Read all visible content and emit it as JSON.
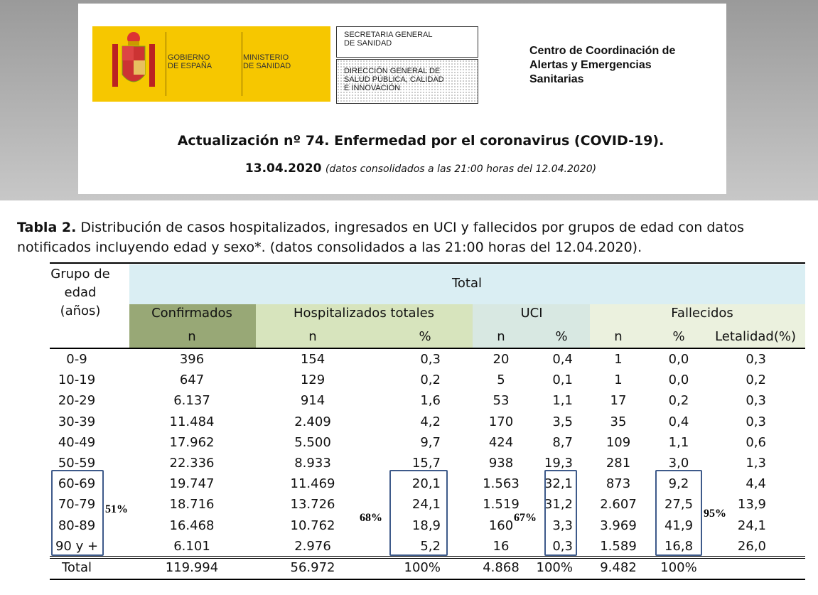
{
  "header": {
    "gobierno": [
      "GOBIERNO",
      "DE ESPAÑA"
    ],
    "ministerio": [
      "MINISTERIO",
      "DE SANIDAD"
    ],
    "box1": [
      "SECRETARIA GENERAL",
      "DE SANIDAD"
    ],
    "box2": [
      "DIRECCIÓN GENERAL DE",
      "SALUD PÚBLICA, CALIDAD",
      "E INNOVACIÓN"
    ],
    "centro": [
      "Centro de Coordinación de",
      "Alertas y Emergencias",
      "Sanitarias"
    ],
    "title": "Actualización nº 74. Enfermedad por el coronavirus (COVID-19).",
    "date": "13.04.2020",
    "date_note": "(datos consolidados a las 21:00 horas del 12.04.2020)"
  },
  "caption": {
    "label": "Tabla 2.",
    "text": "Distribución de casos hospitalizados, ingresados en UCI y fallecidos por grupos de edad con datos notificados incluyendo edad y sexo*. (datos consolidados a las 21:00 horas del 12.04.2020)."
  },
  "table": {
    "age_header": [
      "Grupo de",
      "edad",
      "(años)"
    ],
    "total_header": "Total",
    "groups": [
      "Confirmados",
      "Hospitalizados totales",
      "UCI",
      "Fallecidos"
    ],
    "subheaders": [
      "n",
      "n",
      "%",
      "n",
      "%",
      "n",
      "%",
      "Letalidad(%)"
    ],
    "rows": [
      [
        "0-9",
        "396",
        "154",
        "0,3",
        "20",
        "0,4",
        "1",
        "0,0",
        "0,3"
      ],
      [
        "10-19",
        "647",
        "129",
        "0,2",
        "5",
        "0,1",
        "1",
        "0,0",
        "0,2"
      ],
      [
        "20-29",
        "6.137",
        "914",
        "1,6",
        "53",
        "1,1",
        "17",
        "0,2",
        "0,3"
      ],
      [
        "30-39",
        "11.484",
        "2.409",
        "4,2",
        "170",
        "3,5",
        "35",
        "0,4",
        "0,3"
      ],
      [
        "40-49",
        "17.962",
        "5.500",
        "9,7",
        "424",
        "8,7",
        "109",
        "1,1",
        "0,6"
      ],
      [
        "50-59",
        "22.336",
        "8.933",
        "15,7",
        "938",
        "19,3",
        "281",
        "3,0",
        "1,3"
      ],
      [
        "60-69",
        "19.747",
        "11.469",
        "20,1",
        "1.563",
        "32,1",
        "873",
        "9,2",
        "4,4"
      ],
      [
        "70-79",
        "18.716",
        "13.726",
        "24,1",
        "1.519",
        "31,2",
        "2.607",
        "27,5",
        "13,9"
      ],
      [
        "80-89",
        "16.468",
        "10.762",
        "18,9",
        "160",
        "3,3",
        "3.969",
        "41,9",
        "24,1"
      ],
      [
        "90 y +",
        "6.101",
        "2.976",
        "5,2",
        "16",
        "0,3",
        "1.589",
        "16,8",
        "26,0"
      ]
    ],
    "total_row": [
      "Total",
      "119.994",
      "56.972",
      "100%",
      "4.868",
      "100%",
      "9.482",
      "100%"
    ]
  },
  "annotations": [
    "51%",
    "68%",
    "67%",
    "95%"
  ]
}
